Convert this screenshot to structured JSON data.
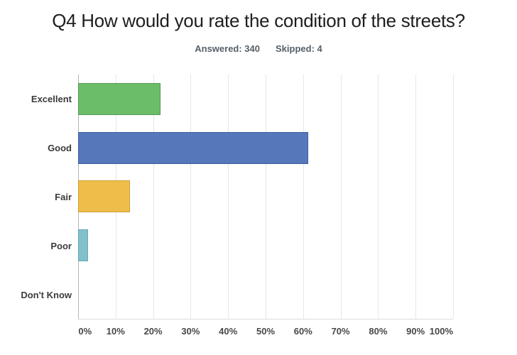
{
  "header": {
    "title": "Q4 How would you rate the condition of the streets?",
    "answered": "Answered: 340",
    "skipped": "Skipped: 4"
  },
  "chart_data": {
    "type": "bar",
    "orientation": "horizontal",
    "title": "Q4 How would you rate the condition of the streets?",
    "answered": 340,
    "skipped": 4,
    "categories": [
      "Excellent",
      "Good",
      "Fair",
      "Poor",
      "Don't Know"
    ],
    "values": [
      21.9,
      61.4,
      13.8,
      2.7,
      0
    ],
    "unit": "%",
    "xlabel": "",
    "ylabel": "",
    "xlim": [
      0,
      100
    ],
    "x_ticks": [
      "0%",
      "10%",
      "20%",
      "30%",
      "40%",
      "50%",
      "60%",
      "70%",
      "80%",
      "90%",
      "100%"
    ],
    "grid": true,
    "legend": false,
    "bar_colors": [
      "#6CBD6A",
      "#5578BB",
      "#EEBD4A",
      "#82C1CC",
      null
    ],
    "bar_border_colors": [
      "#4F9B50",
      "#3D5E9D",
      "#CE9F33",
      "#67A7B4",
      null
    ]
  }
}
